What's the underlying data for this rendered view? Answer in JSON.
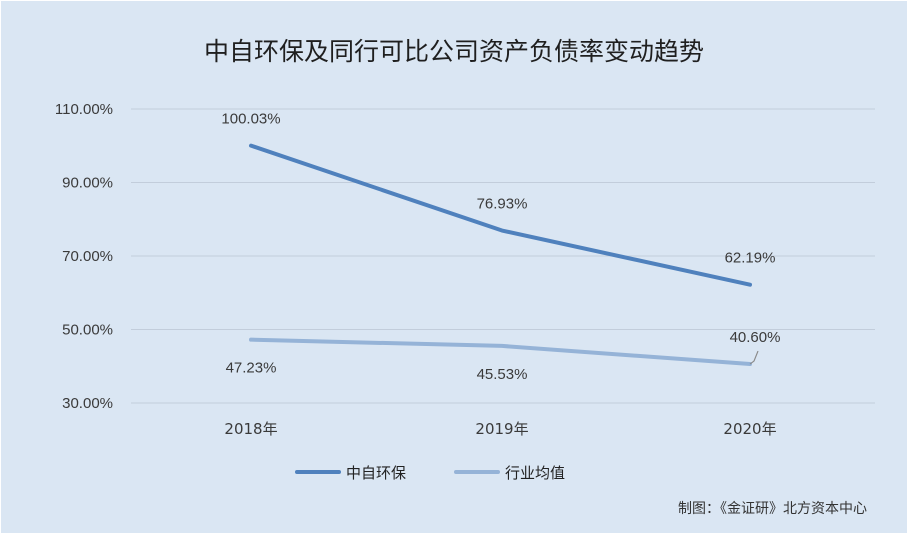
{
  "chart_data": {
    "type": "line",
    "title": "中自环保及同行可比公司资产负债率变动趋势",
    "categories": [
      "2018年",
      "2019年",
      "2020年"
    ],
    "series": [
      {
        "name": "中自环保",
        "values": [
          100.03,
          76.93,
          62.19
        ],
        "labels": [
          "100.03%",
          "76.93%",
          "62.19%"
        ],
        "color": "#4f81bd"
      },
      {
        "name": "行业均值",
        "values": [
          47.23,
          45.53,
          40.6
        ],
        "labels": [
          "47.23%",
          "45.53%",
          "40.60%"
        ],
        "color": "#95b3d7"
      }
    ],
    "ylim": [
      30,
      110
    ],
    "yticks": [
      30,
      50,
      70,
      90,
      110
    ],
    "ytick_labels": [
      "30.00%",
      "50.00%",
      "70.00%",
      "90.00%",
      "110.00%"
    ],
    "grid": true,
    "legend_position": "bottom"
  },
  "credit": "制图：《金证研》北方资本中心"
}
